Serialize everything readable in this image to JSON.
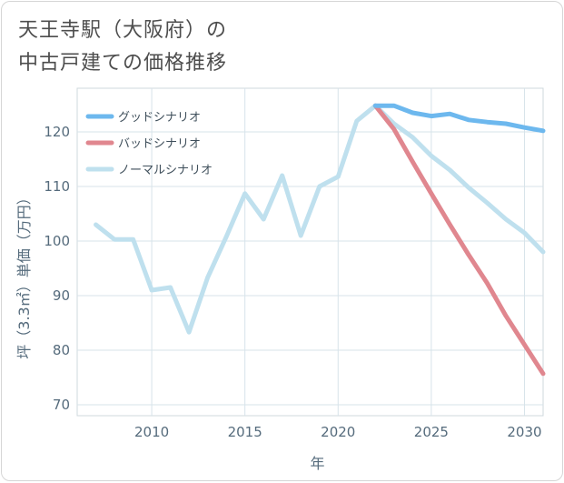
{
  "title": {
    "line1": "天王寺駅（大阪府）の",
    "line2": "中古戸建ての価格推移"
  },
  "chart_data": {
    "type": "line",
    "xlabel": "年",
    "ylabel": "坪（3.3㎡）単価（万円）",
    "xlim": [
      2006,
      2031
    ],
    "ylim": [
      68,
      128
    ],
    "xticks": [
      2010,
      2015,
      2020,
      2025,
      2030
    ],
    "yticks": [
      70,
      80,
      90,
      100,
      110,
      120
    ],
    "grid": true,
    "legend_position": "top-left",
    "series": [
      {
        "name": "グッドシナリオ",
        "color": "#6db8ee",
        "points": [
          [
            2022,
            124.8
          ],
          [
            2023,
            124.8
          ],
          [
            2024,
            123.5
          ],
          [
            2025,
            122.9
          ],
          [
            2026,
            123.3
          ],
          [
            2027,
            122.2
          ],
          [
            2028,
            121.8
          ],
          [
            2029,
            121.5
          ],
          [
            2030,
            120.8
          ],
          [
            2031,
            120.2
          ]
        ]
      },
      {
        "name": "バッドシナリオ",
        "color": "#e0878f",
        "points": [
          [
            2022,
            124.8
          ],
          [
            2023,
            120.5
          ],
          [
            2024,
            114.5
          ],
          [
            2025,
            108.7
          ],
          [
            2026,
            103.0
          ],
          [
            2027,
            97.5
          ],
          [
            2028,
            92.3
          ],
          [
            2029,
            86.3
          ],
          [
            2030,
            81.0
          ],
          [
            2031,
            75.7
          ]
        ]
      },
      {
        "name": "ノーマルシナリオ",
        "color": "#bfe0ee",
        "points": [
          [
            2007,
            103.0
          ],
          [
            2008,
            100.3
          ],
          [
            2009,
            100.3
          ],
          [
            2010,
            91.0
          ],
          [
            2011,
            91.5
          ],
          [
            2012,
            83.3
          ],
          [
            2013,
            93.3
          ],
          [
            2014,
            100.8
          ],
          [
            2015,
            108.7
          ],
          [
            2016,
            104.0
          ],
          [
            2017,
            112.0
          ],
          [
            2018,
            101.0
          ],
          [
            2019,
            110.0
          ],
          [
            2020,
            111.8
          ],
          [
            2021,
            122.0
          ],
          [
            2022,
            124.8
          ],
          [
            2023,
            121.5
          ],
          [
            2024,
            119.0
          ],
          [
            2025,
            115.6
          ],
          [
            2026,
            113.0
          ],
          [
            2027,
            109.8
          ],
          [
            2028,
            107.0
          ],
          [
            2029,
            104.0
          ],
          [
            2030,
            101.5
          ],
          [
            2031,
            98.0
          ]
        ]
      }
    ]
  }
}
